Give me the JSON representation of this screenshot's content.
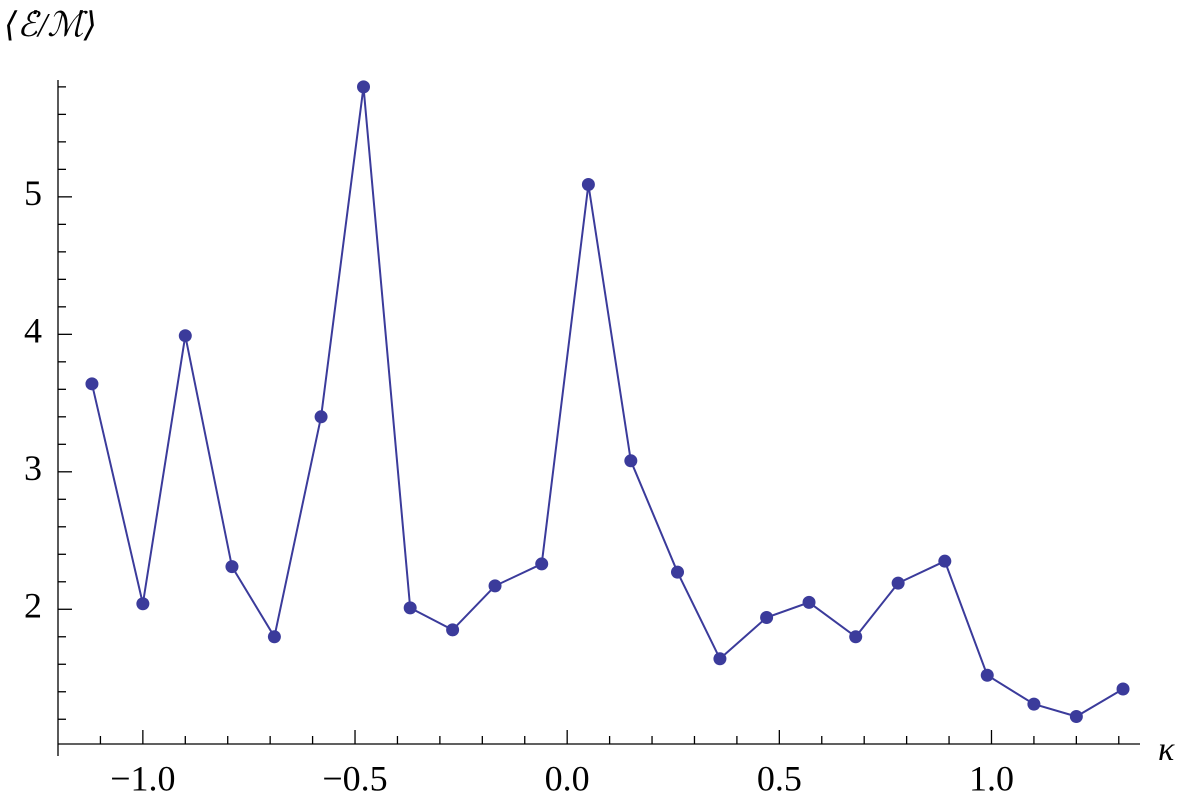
{
  "chart_data": {
    "type": "line",
    "xlabel": "κ",
    "ylabel": "⟨ℰ̇/ℳ̇⟩",
    "x": [
      -1.12,
      -1.0,
      -0.9,
      -0.79,
      -0.69,
      -0.58,
      -0.48,
      -0.37,
      -0.27,
      -0.17,
      -0.06,
      0.05,
      0.15,
      0.26,
      0.36,
      0.47,
      0.57,
      0.68,
      0.78,
      0.89,
      0.99,
      1.1,
      1.2,
      1.31
    ],
    "series": [
      {
        "color": "#3b3b9b",
        "values": [
          3.64,
          2.04,
          3.99,
          2.31,
          1.8,
          3.4,
          5.8,
          2.01,
          1.85,
          2.17,
          2.33,
          5.09,
          3.08,
          2.27,
          1.64,
          1.94,
          2.05,
          1.8,
          2.19,
          2.35,
          1.52,
          1.31,
          1.22,
          1.42
        ]
      }
    ],
    "xlim": [
      -1.2,
      1.35
    ],
    "ylim": [
      1.02,
      5.85
    ],
    "xticks": [
      {
        "value": -1,
        "label": "−1.0"
      },
      {
        "value": -0.5,
        "label": "−0.5"
      },
      {
        "value": 0,
        "label": "0.0"
      },
      0.5,
      {
        "value": 1,
        "label": "1.0"
      }
    ],
    "yticks": [
      2,
      3,
      4,
      5
    ],
    "xminorticks": [
      -1.1,
      -0.9,
      -0.8,
      -0.7,
      -0.6,
      -0.4,
      -0.3,
      -0.2,
      -0.1,
      0.1,
      0.2,
      0.3,
      0.4,
      0.6,
      0.7,
      0.8,
      0.9,
      1.1,
      1.2,
      1.3
    ],
    "yminorticks": [
      1.2,
      1.4,
      1.6,
      1.8,
      2.2,
      2.4,
      2.6,
      2.8,
      3.2,
      3.4,
      3.6,
      3.8,
      4.2,
      4.4,
      4.6,
      4.8,
      5.2,
      5.4,
      5.6,
      5.8
    ]
  }
}
